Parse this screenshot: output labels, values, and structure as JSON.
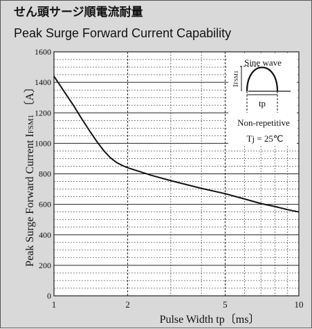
{
  "title_jp": "せん頭サージ順電流耐量",
  "title_en": "Peak Surge Forward Current Capability",
  "chart_data": {
    "type": "line",
    "xscale": "log",
    "xlim": [
      1,
      10
    ],
    "ylim": [
      0,
      1600
    ],
    "xticks": [
      1,
      2,
      5,
      10
    ],
    "yticks": [
      0,
      200,
      400,
      600,
      800,
      1000,
      1200,
      1400,
      1600
    ],
    "xlabel": "Pulse Width  tp〔ms〕",
    "ylabel": "Peak Surge Forward Current  I",
    "ylabel_sub": "FSM1",
    "ylabel_unit": "〔A〕",
    "grid": true,
    "series": [
      {
        "x": [
          1,
          1.1,
          1.2,
          1.3,
          1.4,
          1.5,
          1.6,
          1.7,
          1.8,
          1.9,
          2,
          2.5,
          3,
          4,
          5,
          6,
          7,
          8,
          9,
          10
        ],
        "y": [
          1440,
          1340,
          1250,
          1160,
          1080,
          1010,
          950,
          905,
          875,
          855,
          840,
          790,
          755,
          705,
          670,
          635,
          605,
          585,
          565,
          550
        ]
      }
    ],
    "annotations": {
      "waveform": "Sine wave",
      "waveform_peak": "I",
      "waveform_peak_sub": "FSM1",
      "waveform_width": "tp",
      "repetition": "Non-repetitive",
      "condition": "Tj = 25℃"
    }
  }
}
